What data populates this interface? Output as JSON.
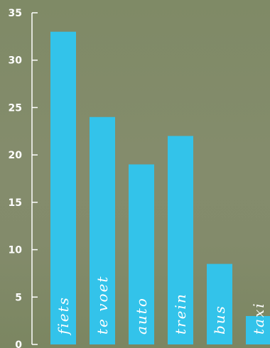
{
  "chart_data": {
    "type": "bar",
    "categories": [
      "fiets",
      "te voet",
      "auto",
      "trein",
      "bus",
      "taxi"
    ],
    "values": [
      33,
      24,
      19,
      22,
      8.5,
      3
    ],
    "title": "",
    "xlabel": "",
    "ylabel": "",
    "ylim": [
      0,
      35
    ],
    "yticks": [
      0,
      5,
      10,
      15,
      20,
      25,
      30,
      35
    ],
    "grid": false,
    "legend": "none",
    "colors": {
      "bar": "#33c3ea",
      "axis": "#ffffff",
      "text": "#ffffff",
      "background": "#828b69"
    }
  }
}
